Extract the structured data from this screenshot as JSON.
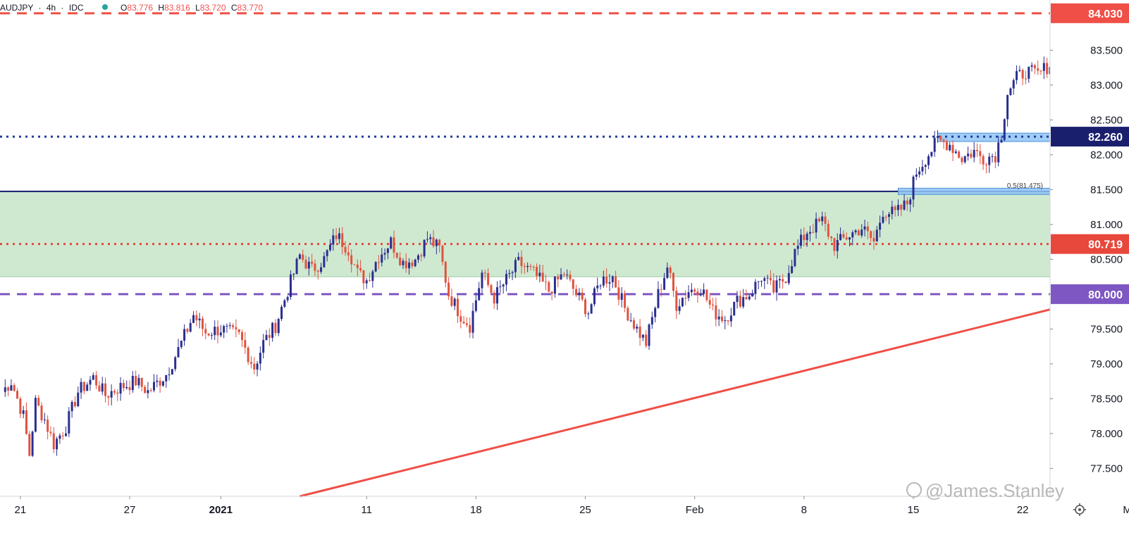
{
  "header": {
    "symbol": "AUDJPY",
    "interval": "4h",
    "source": "IDC",
    "open_label": "O",
    "open": "83.776",
    "high_label": "H",
    "high": "83.816",
    "low_label": "L",
    "low": "83.720",
    "close_label": "C",
    "close": "83.770"
  },
  "watermark": "@James.Stanley",
  "settings_icon": "gear-icon",
  "colors": {
    "up": "#2a2f8f",
    "down": "#e0533f",
    "zone_fill": "#cfe9d1",
    "zone_border": "#131c6d",
    "resistance": "#ef4f46",
    "support_blue": "#1d3f9b",
    "blue_box": "#90c4f4",
    "purple": "#7e57c2",
    "trendline": "#ef4f46",
    "pivot_red": "#e8473c"
  },
  "chart_data": {
    "type": "candlestick",
    "ylim": [
      77.1,
      84.2
    ],
    "y_ticks": [
      "77.500",
      "78.000",
      "78.500",
      "79.000",
      "79.500",
      "80.000",
      "80.500",
      "81.000",
      "81.500",
      "82.000",
      "82.500",
      "83.000",
      "83.500"
    ],
    "x_ticks": [
      {
        "label": "21",
        "idx": 6
      },
      {
        "label": "27",
        "idx": 42
      },
      {
        "label": "2021",
        "idx": 72,
        "bold": true
      },
      {
        "label": "11",
        "idx": 120
      },
      {
        "label": "18",
        "idx": 156
      },
      {
        "label": "25",
        "idx": 192
      },
      {
        "label": "Feb",
        "idx": 228
      },
      {
        "label": "8",
        "idx": 264
      },
      {
        "label": "15",
        "idx": 300
      },
      {
        "label": "22",
        "idx": 336
      },
      {
        "label": "Mar",
        "idx": 372
      }
    ],
    "levels": [
      {
        "price": 84.03,
        "label": "84.030",
        "style": "dashed",
        "color": "#ef4f46"
      },
      {
        "price": 82.26,
        "label": "82.260",
        "style": "dotted",
        "color": "#1d3f9b"
      },
      {
        "price": 80.719,
        "label": "80.719",
        "style": "dotted",
        "color": "#e8473c"
      },
      {
        "price": 80.0,
        "label": "80.000",
        "style": "dashed",
        "color": "#7e57c2"
      }
    ],
    "fib_label": "0.5(81.475)",
    "fib_price": 81.475,
    "zone": {
      "top": 81.475,
      "bottom": 80.25
    },
    "blue_boxes": [
      {
        "top": 82.31,
        "bottom": 82.19,
        "start_idx": 308
      },
      {
        "top": 81.52,
        "bottom": 81.43,
        "start_idx": 295
      }
    ],
    "trendline": {
      "start": {
        "idx": 98,
        "price": 77.1
      },
      "end": {
        "idx": 393,
        "price": 80.3
      }
    },
    "anchors": [
      {
        "idx": 0,
        "price": 78.6
      },
      {
        "idx": 3,
        "price": 78.75
      },
      {
        "idx": 7,
        "price": 78.25
      },
      {
        "idx": 9,
        "price": 77.7
      },
      {
        "idx": 11,
        "price": 78.45
      },
      {
        "idx": 14,
        "price": 78.2
      },
      {
        "idx": 17,
        "price": 77.85
      },
      {
        "idx": 21,
        "price": 78.1
      },
      {
        "idx": 25,
        "price": 78.6
      },
      {
        "idx": 30,
        "price": 78.8
      },
      {
        "idx": 34,
        "price": 78.55
      },
      {
        "idx": 38,
        "price": 78.65
      },
      {
        "idx": 44,
        "price": 78.75
      },
      {
        "idx": 48,
        "price": 78.6
      },
      {
        "idx": 54,
        "price": 78.85
      },
      {
        "idx": 58,
        "price": 79.2
      },
      {
        "idx": 63,
        "price": 79.7
      },
      {
        "idx": 67,
        "price": 79.45
      },
      {
        "idx": 72,
        "price": 79.5
      },
      {
        "idx": 78,
        "price": 79.4
      },
      {
        "idx": 83,
        "price": 78.95
      },
      {
        "idx": 86,
        "price": 79.3
      },
      {
        "idx": 90,
        "price": 79.55
      },
      {
        "idx": 94,
        "price": 80.05
      },
      {
        "idx": 98,
        "price": 80.55
      },
      {
        "idx": 102,
        "price": 80.35
      },
      {
        "idx": 106,
        "price": 80.5
      },
      {
        "idx": 110,
        "price": 80.85
      },
      {
        "idx": 114,
        "price": 80.65
      },
      {
        "idx": 117,
        "price": 80.3
      },
      {
        "idx": 120,
        "price": 80.2
      },
      {
        "idx": 124,
        "price": 80.55
      },
      {
        "idx": 128,
        "price": 80.75
      },
      {
        "idx": 132,
        "price": 80.45
      },
      {
        "idx": 136,
        "price": 80.5
      },
      {
        "idx": 140,
        "price": 80.8
      },
      {
        "idx": 144,
        "price": 80.65
      },
      {
        "idx": 147,
        "price": 80.0
      },
      {
        "idx": 151,
        "price": 79.7
      },
      {
        "idx": 154,
        "price": 79.55
      },
      {
        "idx": 158,
        "price": 80.3
      },
      {
        "idx": 162,
        "price": 79.95
      },
      {
        "idx": 166,
        "price": 80.2
      },
      {
        "idx": 170,
        "price": 80.45
      },
      {
        "idx": 175,
        "price": 80.3
      },
      {
        "idx": 180,
        "price": 80.05
      },
      {
        "idx": 185,
        "price": 80.3
      },
      {
        "idx": 189,
        "price": 80.0
      },
      {
        "idx": 193,
        "price": 79.75
      },
      {
        "idx": 197,
        "price": 80.2
      },
      {
        "idx": 201,
        "price": 80.25
      },
      {
        "idx": 205,
        "price": 79.8
      },
      {
        "idx": 209,
        "price": 79.5
      },
      {
        "idx": 212,
        "price": 79.3
      },
      {
        "idx": 216,
        "price": 80.0
      },
      {
        "idx": 219,
        "price": 80.4
      },
      {
        "idx": 222,
        "price": 79.85
      },
      {
        "idx": 226,
        "price": 80.05
      },
      {
        "idx": 230,
        "price": 80.1
      },
      {
        "idx": 234,
        "price": 79.75
      },
      {
        "idx": 238,
        "price": 79.65
      },
      {
        "idx": 242,
        "price": 79.9
      },
      {
        "idx": 246,
        "price": 80.0
      },
      {
        "idx": 250,
        "price": 80.25
      },
      {
        "idx": 254,
        "price": 80.05
      },
      {
        "idx": 258,
        "price": 80.25
      },
      {
        "idx": 261,
        "price": 80.6
      },
      {
        "idx": 265,
        "price": 80.9
      },
      {
        "idx": 270,
        "price": 81.05
      },
      {
        "idx": 274,
        "price": 80.7
      },
      {
        "idx": 279,
        "price": 80.85
      },
      {
        "idx": 283,
        "price": 80.95
      },
      {
        "idx": 287,
        "price": 80.75
      },
      {
        "idx": 290,
        "price": 81.2
      },
      {
        "idx": 294,
        "price": 81.15
      },
      {
        "idx": 298,
        "price": 81.3
      },
      {
        "idx": 301,
        "price": 81.75
      },
      {
        "idx": 304,
        "price": 81.95
      },
      {
        "idx": 308,
        "price": 82.2
      },
      {
        "idx": 312,
        "price": 82.15
      },
      {
        "idx": 316,
        "price": 81.95
      },
      {
        "idx": 320,
        "price": 82.05
      },
      {
        "idx": 323,
        "price": 81.95
      },
      {
        "idx": 327,
        "price": 82.0
      },
      {
        "idx": 329,
        "price": 82.3
      },
      {
        "idx": 331,
        "price": 82.9
      },
      {
        "idx": 334,
        "price": 83.1
      },
      {
        "idx": 337,
        "price": 83.2
      },
      {
        "idx": 341,
        "price": 83.15
      },
      {
        "idx": 345,
        "price": 83.3
      },
      {
        "idx": 348,
        "price": 83.65
      },
      {
        "idx": 351,
        "price": 83.8
      }
    ]
  }
}
